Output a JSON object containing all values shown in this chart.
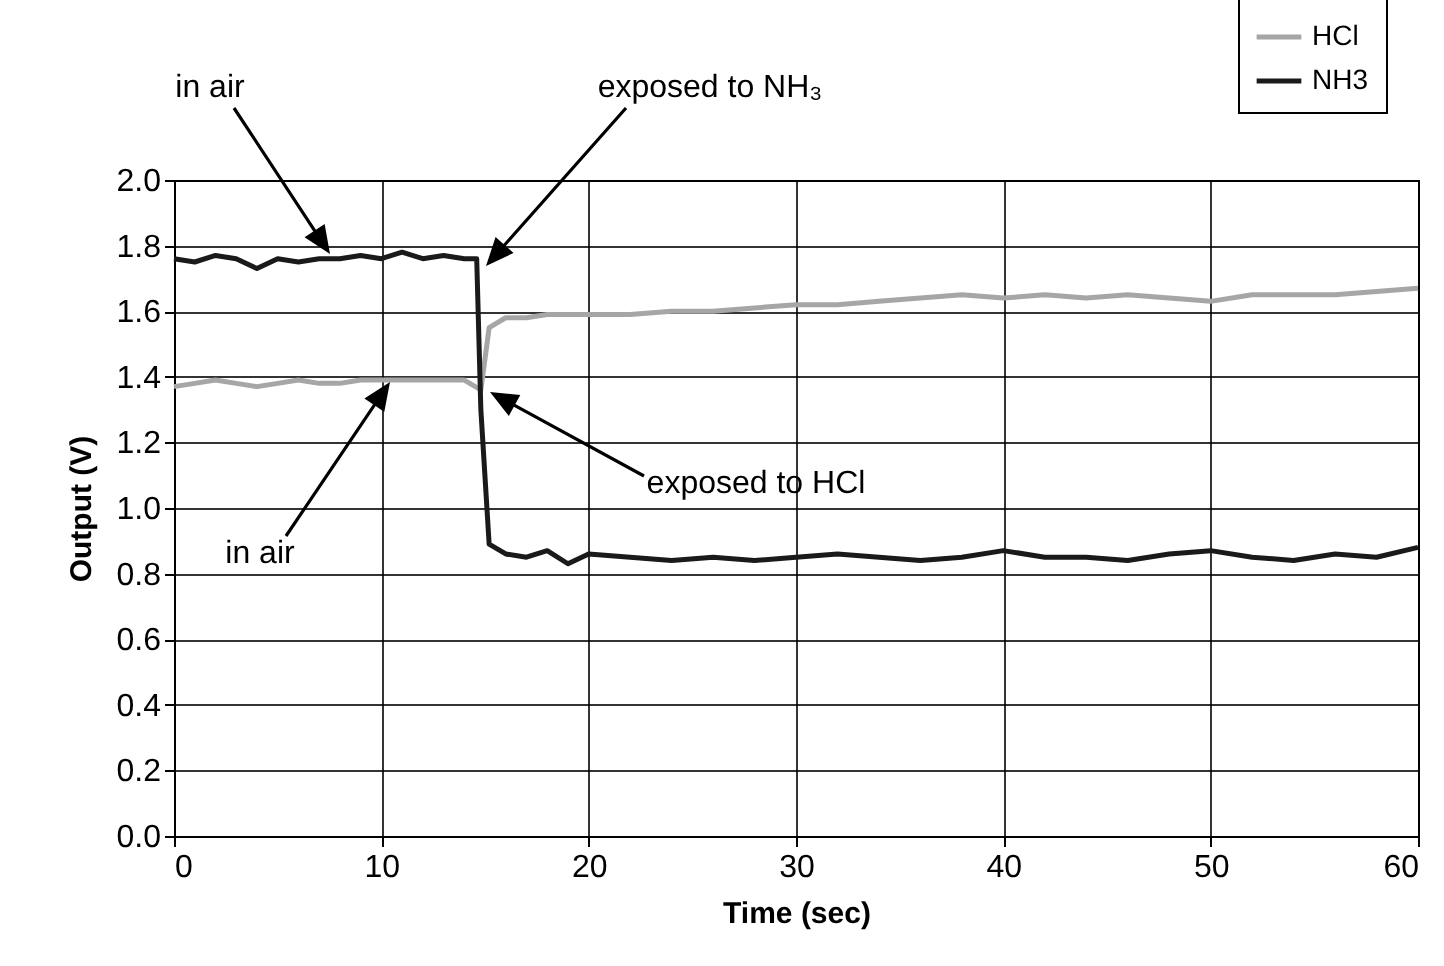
{
  "chart_data": {
    "type": "line",
    "xlabel": "Time (sec)",
    "ylabel": "Output (V)",
    "xlim": [
      0,
      60
    ],
    "xticks": [
      0,
      10,
      20,
      30,
      40,
      50,
      60
    ],
    "ylim": [
      0,
      2
    ],
    "yticks": [
      {
        "value": 0,
        "label": "0.0"
      },
      {
        "value": 0.2,
        "label": "0.2"
      },
      {
        "value": 0.4,
        "label": "0.4"
      },
      {
        "value": 0.6,
        "label": "0.6"
      },
      {
        "value": 0.8,
        "label": "0.8"
      },
      {
        "value": 1,
        "label": "1.0"
      },
      {
        "value": 1.2,
        "label": "1.2"
      },
      {
        "value": 1.4,
        "label": "1.4"
      },
      {
        "value": 1.6,
        "label": "1.6"
      },
      {
        "value": 1.8,
        "label": "1.8"
      },
      {
        "value": 2,
        "label": "2.0"
      }
    ],
    "grid": true,
    "legend": "top right",
    "marker": "none",
    "line_style": "solid",
    "series": [
      {
        "name": "HCl",
        "color": "#a6a6a6",
        "x": [
          0,
          1,
          2,
          3,
          4,
          5,
          6,
          7,
          8,
          9,
          10,
          11,
          12,
          13,
          14,
          14.8,
          15.2,
          16,
          17,
          18,
          19,
          20,
          22,
          24,
          26,
          28,
          30,
          32,
          34,
          36,
          38,
          40,
          42,
          44,
          46,
          48,
          50,
          52,
          54,
          56,
          58,
          60
        ],
        "values": [
          1.37,
          1.38,
          1.39,
          1.38,
          1.37,
          1.38,
          1.39,
          1.38,
          1.38,
          1.39,
          1.39,
          1.39,
          1.39,
          1.39,
          1.39,
          1.36,
          1.55,
          1.58,
          1.58,
          1.59,
          1.59,
          1.59,
          1.59,
          1.6,
          1.6,
          1.61,
          1.62,
          1.62,
          1.63,
          1.64,
          1.65,
          1.64,
          1.65,
          1.64,
          1.65,
          1.64,
          1.63,
          1.65,
          1.65,
          1.65,
          1.66,
          1.67
        ]
      },
      {
        "name": "NH3",
        "color": "#1a1a1a",
        "x": [
          0,
          1,
          2,
          3,
          4,
          5,
          6,
          7,
          8,
          9,
          10,
          11,
          12,
          13,
          14,
          14.6,
          14.8,
          15.2,
          16,
          17,
          18,
          19,
          20,
          22,
          24,
          26,
          28,
          30,
          32,
          34,
          36,
          38,
          40,
          42,
          44,
          46,
          48,
          50,
          52,
          54,
          56,
          58,
          60
        ],
        "values": [
          1.76,
          1.75,
          1.77,
          1.76,
          1.73,
          1.76,
          1.75,
          1.76,
          1.76,
          1.77,
          1.76,
          1.78,
          1.76,
          1.77,
          1.76,
          1.76,
          1.3,
          0.89,
          0.86,
          0.85,
          0.87,
          0.83,
          0.86,
          0.85,
          0.84,
          0.85,
          0.84,
          0.85,
          0.86,
          0.85,
          0.84,
          0.85,
          0.87,
          0.85,
          0.85,
          0.84,
          0.86,
          0.87,
          0.85,
          0.84,
          0.86,
          0.85,
          0.88
        ]
      }
    ],
    "annotations": [
      "in air",
      "exposed to NH₃",
      "in air",
      "exposed to HCl"
    ]
  }
}
